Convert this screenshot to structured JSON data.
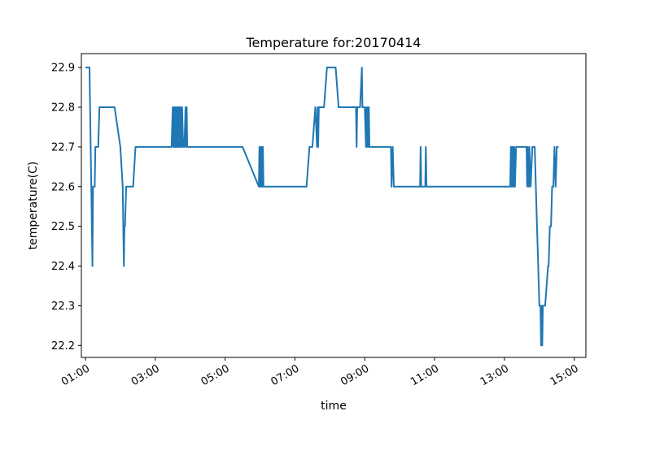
{
  "chart_data": {
    "type": "line",
    "title": "Temperature for:20170414",
    "xlabel": "time",
    "ylabel": "temperature(C)",
    "xlim": [
      "00:53",
      "15:20"
    ],
    "ylim": [
      22.17,
      22.935
    ],
    "xticks": [
      "01:00",
      "03:00",
      "05:00",
      "07:00",
      "09:00",
      "11:00",
      "13:00",
      "15:00"
    ],
    "yticks": [
      "22.2",
      "22.3",
      "22.4",
      "22.5",
      "22.6",
      "22.7",
      "22.8",
      "22.9"
    ],
    "grid": false,
    "line_color": "#1f77b4",
    "series": [
      {
        "x": [
          "01:00",
          "01:07",
          "01:08",
          "01:09",
          "01:10",
          "01:11",
          "01:12",
          "01:13",
          "01:14",
          "01:16",
          "01:17",
          "01:18",
          "01:19",
          "01:20",
          "01:22",
          "01:24",
          "01:27",
          "01:30",
          "01:32",
          "01:35",
          "01:38",
          "01:40",
          "01:50",
          "02:00",
          "02:04",
          "02:05",
          "02:06",
          "02:07",
          "02:08",
          "02:10",
          "02:12",
          "02:13",
          "02:15",
          "02:20",
          "02:22",
          "02:26",
          "02:30",
          "02:35",
          "02:40",
          "02:50",
          "03:00",
          "03:10",
          "03:20",
          "03:28",
          "03:30",
          "03:31",
          "03:32",
          "03:33",
          "03:34",
          "03:35",
          "03:36",
          "03:37",
          "03:38",
          "03:39",
          "03:40",
          "03:41",
          "03:42",
          "03:43",
          "03:44",
          "03:45",
          "03:46",
          "03:48",
          "03:50",
          "03:52",
          "03:53",
          "03:54",
          "03:55",
          "03:56",
          "04:00",
          "04:30",
          "05:00",
          "05:30",
          "05:58",
          "05:59",
          "06:00",
          "06:01",
          "06:02",
          "06:03",
          "06:04",
          "06:05",
          "06:06",
          "06:07",
          "06:10",
          "06:30",
          "07:00",
          "07:20",
          "07:25",
          "07:30",
          "07:35",
          "07:38",
          "07:39",
          "07:40",
          "07:41",
          "07:42",
          "07:50",
          "07:55",
          "07:58",
          "08:00",
          "08:10",
          "08:15",
          "08:20",
          "08:30",
          "08:40",
          "08:45",
          "08:46",
          "08:47",
          "08:50",
          "08:52",
          "08:55",
          "08:56",
          "09:00",
          "09:02",
          "09:03",
          "09:04",
          "09:05",
          "09:06",
          "09:07",
          "09:08",
          "09:10",
          "09:20",
          "09:30",
          "09:40",
          "09:45",
          "09:46",
          "09:48",
          "09:50",
          "10:00",
          "10:20",
          "10:35",
          "10:36",
          "10:37",
          "10:40",
          "10:44",
          "10:45",
          "10:46",
          "11:00",
          "12:00",
          "13:00",
          "13:10",
          "13:11",
          "13:12",
          "13:13",
          "13:14",
          "13:15",
          "13:16",
          "13:17",
          "13:18",
          "13:20",
          "13:25",
          "13:30",
          "13:35",
          "13:38",
          "13:39",
          "13:40",
          "13:42",
          "13:43",
          "13:45",
          "13:48",
          "13:50",
          "13:52",
          "13:54",
          "13:56",
          "13:58",
          "14:00",
          "14:01",
          "14:02",
          "14:03",
          "14:04",
          "14:05",
          "14:06",
          "14:07",
          "14:10",
          "14:15",
          "14:16",
          "14:18",
          "14:20",
          "14:22",
          "14:24",
          "14:26",
          "14:28",
          "14:30",
          "14:33"
        ],
        "y": [
          22.9,
          22.9,
          22.8,
          22.7,
          22.6,
          22.5,
          22.4,
          22.6,
          22.6,
          22.6,
          22.7,
          22.7,
          22.7,
          22.7,
          22.7,
          22.8,
          22.8,
          22.8,
          22.8,
          22.8,
          22.8,
          22.8,
          22.8,
          22.7,
          22.6,
          22.5,
          22.4,
          22.5,
          22.5,
          22.6,
          22.6,
          22.6,
          22.6,
          22.6,
          22.6,
          22.7,
          22.7,
          22.7,
          22.7,
          22.7,
          22.7,
          22.7,
          22.7,
          22.7,
          22.8,
          22.7,
          22.8,
          22.7,
          22.8,
          22.7,
          22.8,
          22.7,
          22.8,
          22.7,
          22.8,
          22.7,
          22.8,
          22.7,
          22.8,
          22.7,
          22.8,
          22.7,
          22.7,
          22.8,
          22.7,
          22.8,
          22.7,
          22.7,
          22.7,
          22.7,
          22.7,
          22.7,
          22.6,
          22.7,
          22.6,
          22.7,
          22.6,
          22.7,
          22.6,
          22.7,
          22.6,
          22.6,
          22.6,
          22.6,
          22.6,
          22.6,
          22.7,
          22.7,
          22.8,
          22.7,
          22.8,
          22.7,
          22.8,
          22.8,
          22.8,
          22.9,
          22.9,
          22.9,
          22.9,
          22.8,
          22.8,
          22.8,
          22.8,
          22.8,
          22.7,
          22.8,
          22.8,
          22.8,
          22.9,
          22.8,
          22.8,
          22.7,
          22.8,
          22.7,
          22.8,
          22.7,
          22.8,
          22.7,
          22.7,
          22.7,
          22.7,
          22.7,
          22.7,
          22.6,
          22.7,
          22.6,
          22.6,
          22.6,
          22.6,
          22.7,
          22.6,
          22.6,
          22.6,
          22.7,
          22.6,
          22.6,
          22.6,
          22.6,
          22.6,
          22.7,
          22.6,
          22.7,
          22.6,
          22.7,
          22.6,
          22.7,
          22.6,
          22.7,
          22.7,
          22.7,
          22.7,
          22.7,
          22.6,
          22.7,
          22.6,
          22.7,
          22.6,
          22.7,
          22.7,
          22.7,
          22.6,
          22.5,
          22.4,
          22.3,
          22.3,
          22.3,
          22.2,
          22.3,
          22.2,
          22.3,
          22.3,
          22.3,
          22.4,
          22.4,
          22.5,
          22.5,
          22.6,
          22.6,
          22.7,
          22.6,
          22.7,
          22.7
        ]
      }
    ]
  }
}
